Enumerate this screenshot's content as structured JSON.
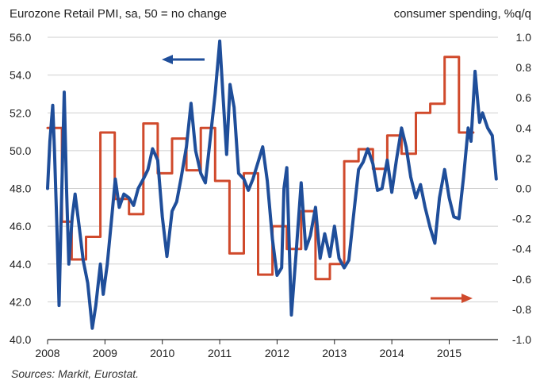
{
  "chart_data": {
    "type": "line",
    "title_left": "Eurozone Retail PMI, sa, 50 = no change",
    "title_right": "consumer spending, %q/q",
    "source": "Sources: Markit, Eurostat.",
    "x_ticks": [
      "2008",
      "2009",
      "2010",
      "2011",
      "2012",
      "2013",
      "2014",
      "2015"
    ],
    "x_range": [
      2008.0,
      2015.85
    ],
    "y_left": {
      "range": [
        40.0,
        56.0
      ],
      "ticks": [
        "40.0",
        "42.0",
        "44.0",
        "46.0",
        "48.0",
        "50.0",
        "52.0",
        "54.0",
        "56.0"
      ]
    },
    "y_right": {
      "range": [
        -1.0,
        1.0
      ],
      "ticks": [
        "-1.0",
        "-0.8",
        "-0.6",
        "-0.4",
        "-0.2",
        "0.0",
        "0.2",
        "0.4",
        "0.6",
        "0.8",
        "1.0"
      ]
    },
    "series": [
      {
        "name": "Eurozone Retail PMI",
        "axis": "left",
        "color": "#1f4e9a",
        "points": [
          [
            2008.0,
            48.0
          ],
          [
            2008.04,
            50.5
          ],
          [
            2008.09,
            52.4
          ],
          [
            2008.12,
            50.0
          ],
          [
            2008.16,
            46.2
          ],
          [
            2008.2,
            41.8
          ],
          [
            2008.24,
            47.0
          ],
          [
            2008.29,
            53.1
          ],
          [
            2008.33,
            48.0
          ],
          [
            2008.37,
            44.0
          ],
          [
            2008.43,
            46.5
          ],
          [
            2008.48,
            47.7
          ],
          [
            2008.55,
            46.0
          ],
          [
            2008.62,
            44.2
          ],
          [
            2008.7,
            43.0
          ],
          [
            2008.78,
            40.6
          ],
          [
            2008.84,
            41.8
          ],
          [
            2008.92,
            44.0
          ],
          [
            2008.97,
            42.4
          ],
          [
            2009.04,
            44.0
          ],
          [
            2009.12,
            46.5
          ],
          [
            2009.18,
            48.5
          ],
          [
            2009.25,
            47.0
          ],
          [
            2009.33,
            47.7
          ],
          [
            2009.42,
            47.5
          ],
          [
            2009.5,
            47.1
          ],
          [
            2009.58,
            48.0
          ],
          [
            2009.67,
            48.5
          ],
          [
            2009.75,
            49.0
          ],
          [
            2009.83,
            50.1
          ],
          [
            2009.92,
            49.5
          ],
          [
            2010.0,
            46.5
          ],
          [
            2010.08,
            44.4
          ],
          [
            2010.17,
            46.8
          ],
          [
            2010.25,
            47.3
          ],
          [
            2010.33,
            48.6
          ],
          [
            2010.42,
            50.2
          ],
          [
            2010.5,
            52.5
          ],
          [
            2010.58,
            50.0
          ],
          [
            2010.67,
            48.8
          ],
          [
            2010.75,
            48.3
          ],
          [
            2010.83,
            50.5
          ],
          [
            2010.92,
            53.0
          ],
          [
            2011.0,
            55.8
          ],
          [
            2011.06,
            52.8
          ],
          [
            2011.12,
            49.8
          ],
          [
            2011.18,
            53.5
          ],
          [
            2011.25,
            52.3
          ],
          [
            2011.33,
            48.8
          ],
          [
            2011.42,
            48.5
          ],
          [
            2011.5,
            47.9
          ],
          [
            2011.58,
            48.5
          ],
          [
            2011.67,
            49.4
          ],
          [
            2011.75,
            50.2
          ],
          [
            2011.83,
            48.4
          ],
          [
            2011.92,
            45.3
          ],
          [
            2012.0,
            43.4
          ],
          [
            2012.08,
            43.8
          ],
          [
            2012.12,
            48.0
          ],
          [
            2012.17,
            49.1
          ],
          [
            2012.25,
            41.3
          ],
          [
            2012.33,
            44.5
          ],
          [
            2012.42,
            48.3
          ],
          [
            2012.5,
            44.8
          ],
          [
            2012.58,
            45.5
          ],
          [
            2012.67,
            47.0
          ],
          [
            2012.75,
            44.3
          ],
          [
            2012.83,
            45.6
          ],
          [
            2012.92,
            44.4
          ],
          [
            2013.0,
            46.0
          ],
          [
            2013.08,
            44.3
          ],
          [
            2013.17,
            43.8
          ],
          [
            2013.25,
            44.2
          ],
          [
            2013.33,
            46.5
          ],
          [
            2013.42,
            49.0
          ],
          [
            2013.5,
            49.4
          ],
          [
            2013.58,
            50.1
          ],
          [
            2013.67,
            49.3
          ],
          [
            2013.75,
            47.9
          ],
          [
            2013.83,
            48.0
          ],
          [
            2013.92,
            49.5
          ],
          [
            2014.0,
            47.8
          ],
          [
            2014.08,
            49.5
          ],
          [
            2014.17,
            51.2
          ],
          [
            2014.25,
            50.2
          ],
          [
            2014.33,
            48.6
          ],
          [
            2014.42,
            47.5
          ],
          [
            2014.5,
            48.2
          ],
          [
            2014.58,
            47.0
          ],
          [
            2014.67,
            45.9
          ],
          [
            2014.75,
            45.1
          ],
          [
            2014.83,
            47.5
          ],
          [
            2014.92,
            49.0
          ],
          [
            2015.0,
            47.5
          ],
          [
            2015.08,
            46.5
          ],
          [
            2015.17,
            46.4
          ],
          [
            2015.25,
            48.6
          ],
          [
            2015.33,
            51.2
          ],
          [
            2015.38,
            50.5
          ],
          [
            2015.45,
            54.2
          ],
          [
            2015.53,
            51.5
          ],
          [
            2015.58,
            52.0
          ],
          [
            2015.67,
            51.2
          ],
          [
            2015.75,
            50.8
          ],
          [
            2015.82,
            48.5
          ]
        ]
      },
      {
        "name": "consumer spending, %q/q",
        "axis": "right",
        "color": "#d04a2c",
        "points": [
          [
            2008.0,
            0.4
          ],
          [
            2008.25,
            0.4
          ],
          [
            2008.25,
            -0.22
          ],
          [
            2008.42,
            -0.22
          ],
          [
            2008.42,
            -0.47
          ],
          [
            2008.67,
            -0.47
          ],
          [
            2008.67,
            -0.32
          ],
          [
            2008.92,
            -0.32
          ],
          [
            2008.92,
            0.37
          ],
          [
            2009.17,
            0.37
          ],
          [
            2009.17,
            -0.07
          ],
          [
            2009.42,
            -0.07
          ],
          [
            2009.42,
            -0.17
          ],
          [
            2009.67,
            -0.17
          ],
          [
            2009.67,
            0.43
          ],
          [
            2009.92,
            0.43
          ],
          [
            2009.92,
            0.1
          ],
          [
            2010.17,
            0.1
          ],
          [
            2010.17,
            0.33
          ],
          [
            2010.42,
            0.33
          ],
          [
            2010.42,
            0.12
          ],
          [
            2010.67,
            0.12
          ],
          [
            2010.67,
            0.4
          ],
          [
            2010.92,
            0.4
          ],
          [
            2010.92,
            0.05
          ],
          [
            2011.17,
            0.05
          ],
          [
            2011.17,
            -0.43
          ],
          [
            2011.42,
            -0.43
          ],
          [
            2011.42,
            0.1
          ],
          [
            2011.67,
            0.1
          ],
          [
            2011.67,
            -0.57
          ],
          [
            2011.92,
            -0.57
          ],
          [
            2011.92,
            -0.25
          ],
          [
            2012.17,
            -0.25
          ],
          [
            2012.17,
            -0.4
          ],
          [
            2012.42,
            -0.4
          ],
          [
            2012.42,
            -0.15
          ],
          [
            2012.67,
            -0.15
          ],
          [
            2012.67,
            -0.6
          ],
          [
            2012.92,
            -0.6
          ],
          [
            2012.92,
            -0.5
          ],
          [
            2013.17,
            -0.5
          ],
          [
            2013.17,
            0.18
          ],
          [
            2013.42,
            0.18
          ],
          [
            2013.42,
            0.26
          ],
          [
            2013.67,
            0.26
          ],
          [
            2013.67,
            0.13
          ],
          [
            2013.92,
            0.13
          ],
          [
            2013.92,
            0.35
          ],
          [
            2014.17,
            0.35
          ],
          [
            2014.17,
            0.23
          ],
          [
            2014.42,
            0.23
          ],
          [
            2014.42,
            0.5
          ],
          [
            2014.67,
            0.5
          ],
          [
            2014.67,
            0.56
          ],
          [
            2014.92,
            0.56
          ],
          [
            2014.92,
            0.87
          ],
          [
            2015.17,
            0.87
          ],
          [
            2015.17,
            0.37
          ],
          [
            2015.42,
            0.37
          ]
        ]
      }
    ],
    "arrow_left": "points to left axis (PMI)",
    "arrow_right": "points to right axis (consumer spending)"
  }
}
